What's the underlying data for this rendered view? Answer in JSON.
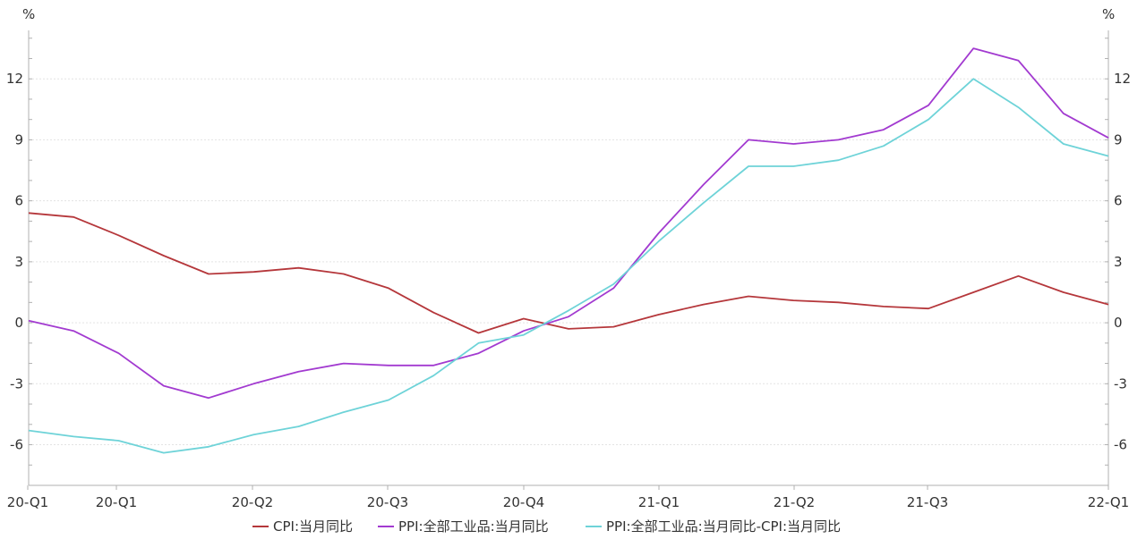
{
  "chart_data": {
    "type": "line",
    "x_tick_labels": [
      "20-Q1",
      "20-Q1",
      "20-Q2",
      "20-Q3",
      "20-Q4",
      "21-Q1",
      "21-Q2",
      "21-Q3",
      "22-Q1"
    ],
    "y_left_unit": "%",
    "y_right_unit": "%",
    "ylim": [
      -8,
      15
    ],
    "yticks": [
      -6,
      -3,
      0,
      3,
      6,
      9,
      12
    ],
    "grid": true,
    "legend_position": "bottom",
    "series": [
      {
        "name": "CPI:当月同比",
        "color": "#b5373b",
        "values": [
          5.4,
          5.2,
          4.3,
          3.3,
          2.4,
          2.5,
          2.7,
          2.4,
          1.7,
          0.5,
          -0.5,
          0.2,
          -0.3,
          -0.2,
          0.4,
          0.9,
          1.3,
          1.1,
          1.0,
          0.8,
          0.7,
          1.5,
          2.3,
          1.5,
          0.9
        ]
      },
      {
        "name": "PPI:全部工业品:当月同比",
        "color": "#a23ad0",
        "values": [
          0.1,
          -0.4,
          -1.5,
          -3.1,
          -3.7,
          -3.0,
          -2.4,
          -2.0,
          -2.1,
          -2.1,
          -1.5,
          -0.4,
          0.3,
          1.7,
          4.4,
          6.8,
          9.0,
          8.8,
          9.0,
          9.5,
          10.7,
          13.5,
          12.9,
          10.3,
          9.1
        ]
      },
      {
        "name": "PPI:全部工业品:当月同比-CPI:当月同比",
        "color": "#6ed3d8",
        "values": [
          -5.3,
          -5.6,
          -5.8,
          -6.4,
          -6.1,
          -5.5,
          -5.1,
          -4.4,
          -3.8,
          -2.6,
          -1.0,
          -0.6,
          0.6,
          1.9,
          4.0,
          5.9,
          7.7,
          7.7,
          8.0,
          8.7,
          10.0,
          12.0,
          10.6,
          8.8,
          8.2
        ]
      }
    ]
  }
}
